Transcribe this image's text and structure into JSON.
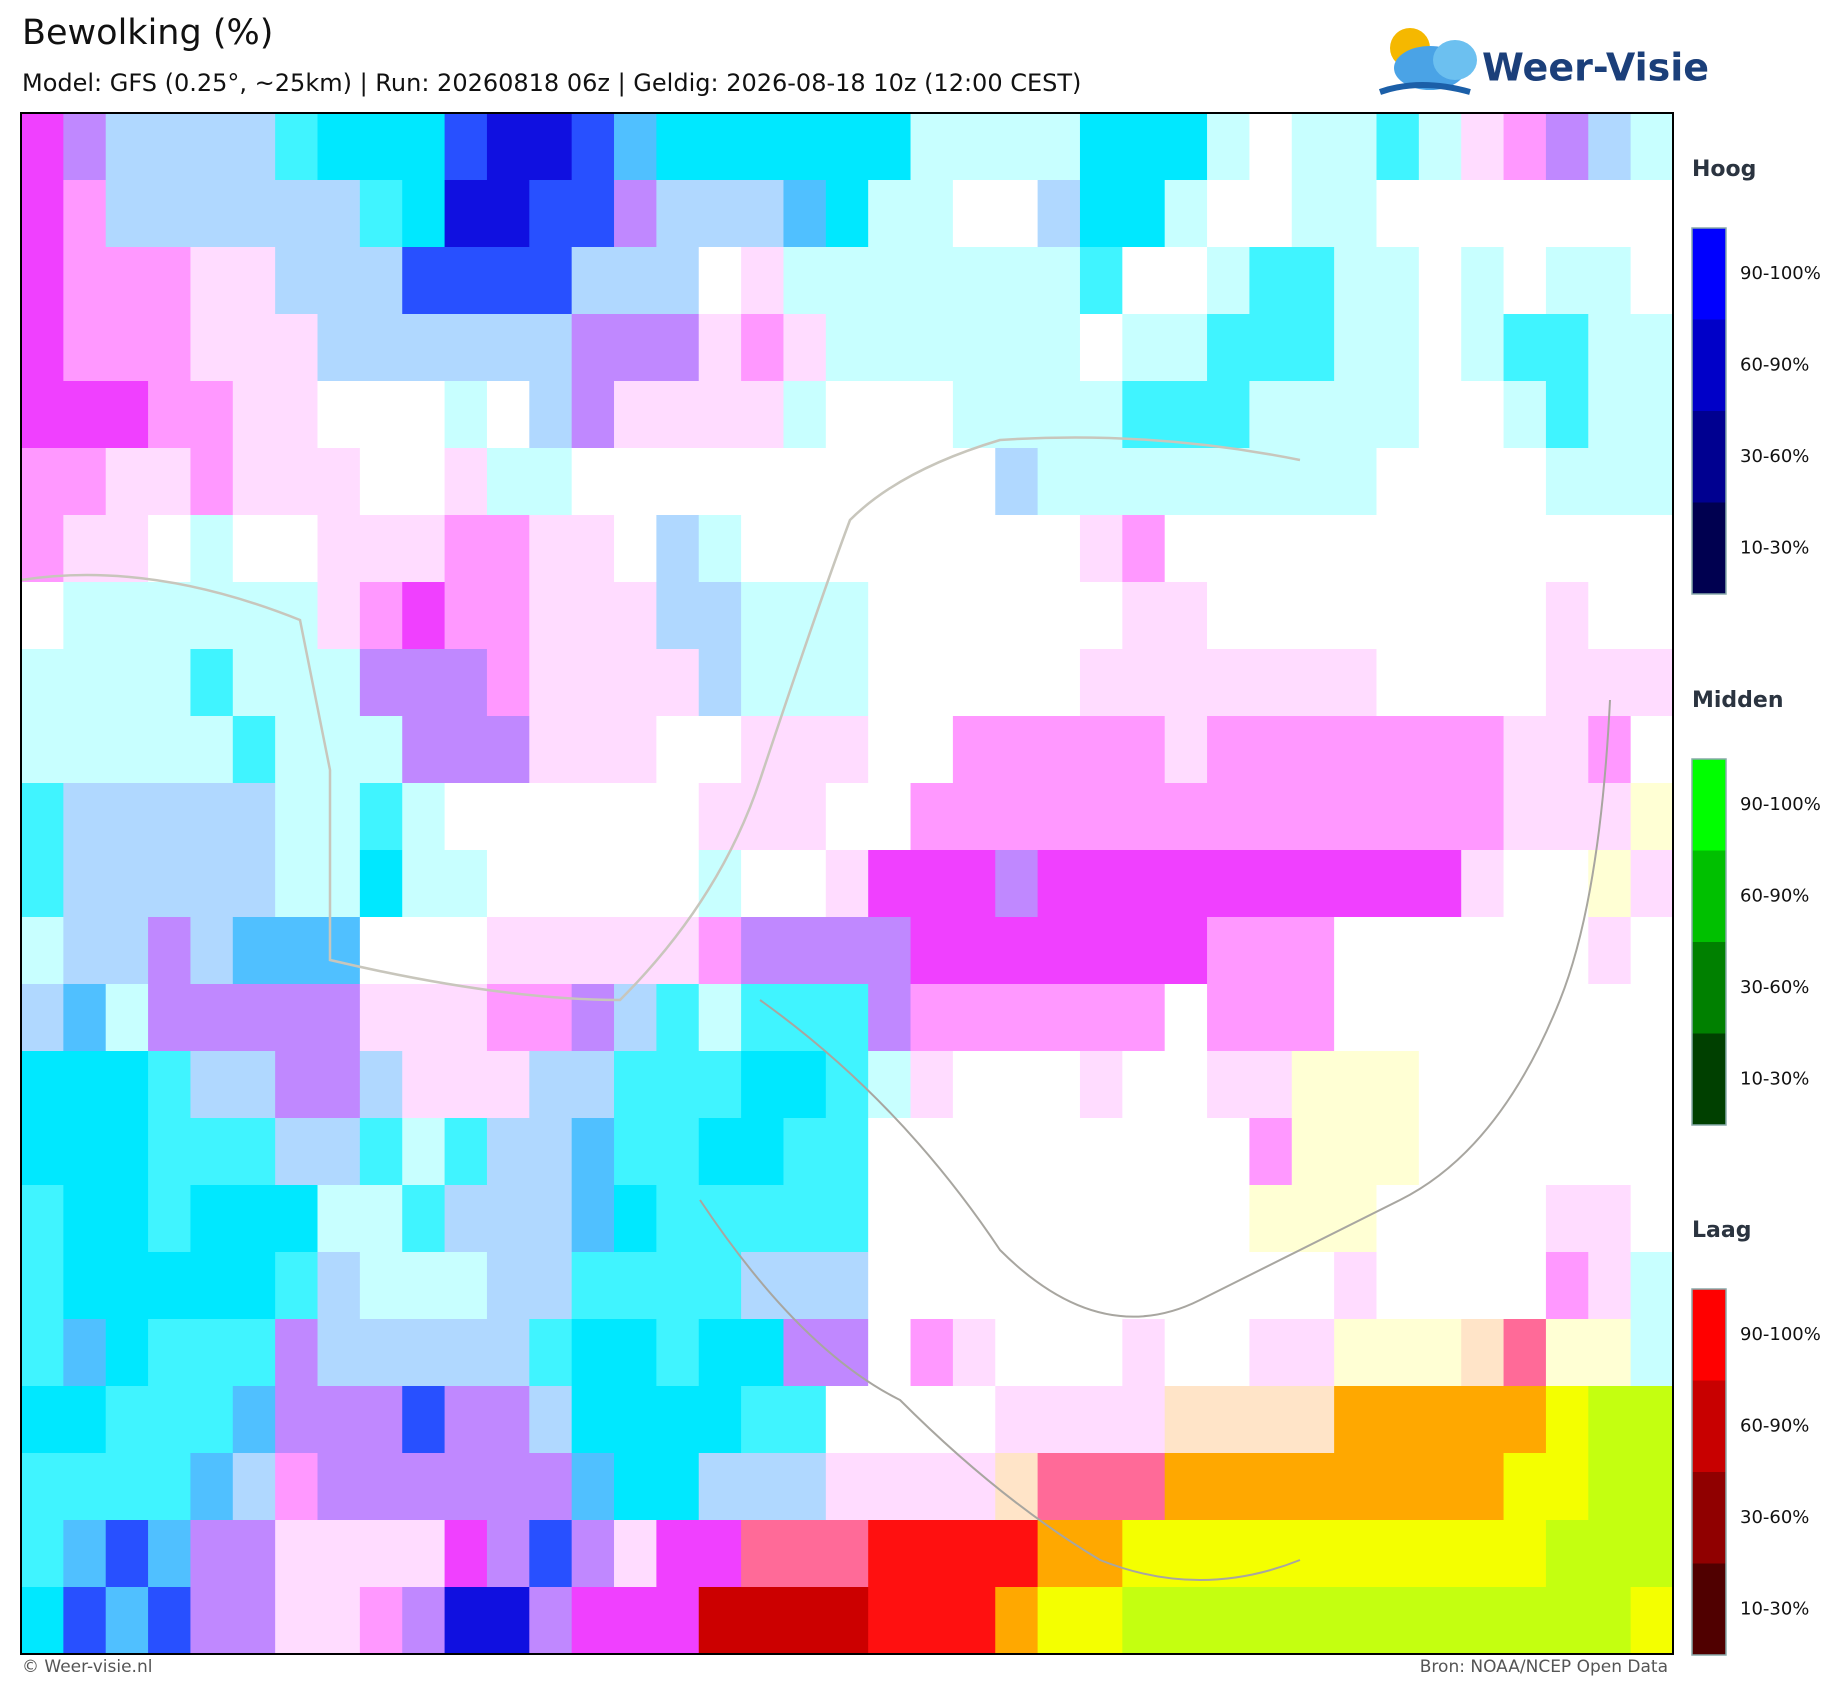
{
  "header": {
    "title": "Bewolking (%)",
    "subtitle": "Model: GFS (0.25°, ~25km)  |  Run: 20260818 06z  |  Geldig: 2026-08-18 10z (12:00 CEST)",
    "logo": "Weer-Visie"
  },
  "legend": [
    {
      "title": "Hoog",
      "labels": [
        "90-100%",
        "60-90%",
        "30-60%",
        "10-30%"
      ],
      "colors": [
        "#0000ff",
        "#0000c8",
        "#000090",
        "#000050"
      ]
    },
    {
      "title": "Midden",
      "labels": [
        "90-100%",
        "60-90%",
        "30-60%",
        "10-30%"
      ],
      "colors": [
        "#00ff00",
        "#00c000",
        "#008000",
        "#004000"
      ]
    },
    {
      "title": "Laag",
      "labels": [
        "90-100%",
        "60-90%",
        "30-60%",
        "10-30%"
      ],
      "colors": [
        "#ff0000",
        "#c80000",
        "#900000",
        "#500000"
      ]
    }
  ],
  "footer": {
    "left": "© Weer-visie.nl",
    "right": "Bron: NOAA/NCEP Open Data"
  }
}
